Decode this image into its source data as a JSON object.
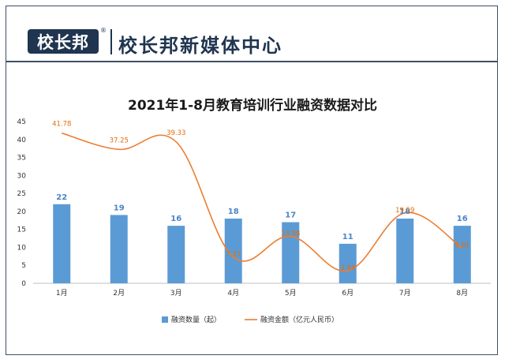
{
  "header": {
    "logo_text": "校长邦",
    "registered_mark": "®",
    "title": "校长邦新媒体中心"
  },
  "colors": {
    "frame": "#3d4f68",
    "logo_bg": "#1f3550",
    "bar": "#5b9bd5",
    "bar_label": "#4a86c7",
    "line": "#ed7d31"
  },
  "chart_data": {
    "type": "bar",
    "title": "2021年1-8月教育培训行业融资数据对比",
    "categories": [
      "1月",
      "2月",
      "3月",
      "4月",
      "5月",
      "6月",
      "7月",
      "8月"
    ],
    "ylim": [
      0,
      45
    ],
    "yticks": [
      "0",
      "5",
      "10",
      "15",
      "20",
      "25",
      "30",
      "35",
      "40",
      "45"
    ],
    "xlabel": "",
    "ylabel": "",
    "grid": false,
    "legend_position": "bottom",
    "series": [
      {
        "name": "融资数量（起）",
        "type": "bar",
        "values": [
          22,
          19,
          16,
          18,
          17,
          11,
          18,
          16
        ],
        "labels": [
          "22",
          "19",
          "16",
          "18",
          "17",
          "11",
          "18",
          "16"
        ]
      },
      {
        "name": "融资金额（亿元人民币）",
        "type": "line",
        "smooth": true,
        "values": [
          41.78,
          37.25,
          39.33,
          7.31,
          13.08,
          3.49,
          19.59,
          9.81
        ],
        "labels": [
          "41.78",
          "37.25",
          "39.33",
          "7.31",
          "13.08",
          "3.49",
          "19.59",
          "9.81"
        ]
      }
    ]
  }
}
